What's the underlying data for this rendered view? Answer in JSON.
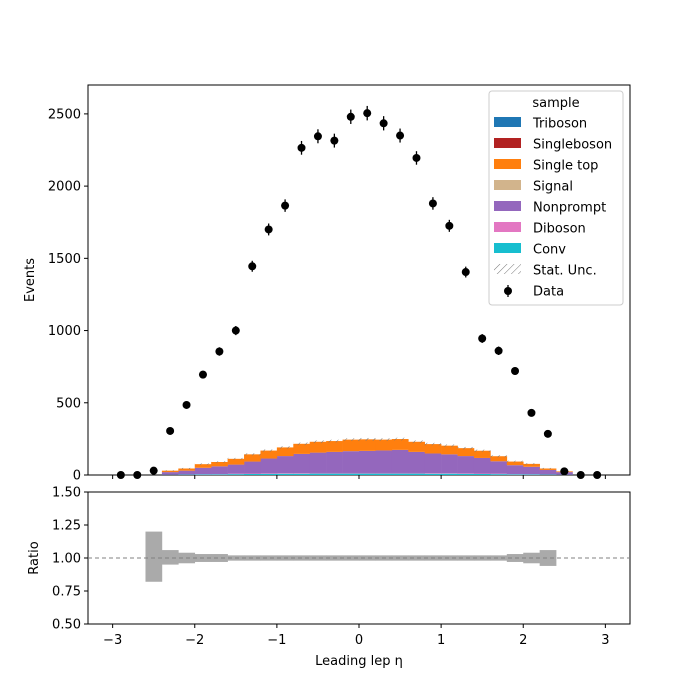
{
  "chart_data": [
    {
      "type": "bar",
      "stacked": true,
      "title": "",
      "xlabel": "",
      "ylabel": "Events",
      "xlim": [
        -3.3,
        3.3
      ],
      "ylim": [
        0,
        2700
      ],
      "yticks": [
        0,
        500,
        1000,
        1500,
        2000,
        2500
      ],
      "grid": false,
      "legend": {
        "title": "sample",
        "placement": "top-right",
        "entries": [
          "Triboson",
          "Singleboson",
          "Single top",
          "Signal",
          "Nonprompt",
          "Diboson",
          "Conv",
          "Stat. Unc.",
          "Data"
        ]
      },
      "bin_edges": [
        -3.0,
        -2.8,
        -2.6,
        -2.4,
        -2.2,
        -2.0,
        -1.8,
        -1.6,
        -1.4,
        -1.2,
        -1.0,
        -0.8,
        -0.6,
        -0.4,
        -0.2,
        0.0,
        0.2,
        0.4,
        0.6,
        0.8,
        1.0,
        1.2,
        1.4,
        1.6,
        1.8,
        2.0,
        2.2,
        2.4,
        2.6,
        2.8,
        3.0
      ],
      "series": [
        {
          "name": "Conv",
          "color": "#17becf",
          "values": [
            0,
            0,
            0,
            2,
            3,
            4,
            5,
            6,
            7,
            8,
            9,
            9,
            10,
            10,
            10,
            10,
            10,
            10,
            10,
            9,
            9,
            8,
            7,
            6,
            5,
            4,
            3,
            2,
            0,
            0
          ]
        },
        {
          "name": "Diboson",
          "color": "#e377c2",
          "values": [
            0,
            0,
            0,
            1,
            1,
            2,
            2,
            3,
            3,
            3,
            4,
            4,
            4,
            4,
            4,
            4,
            4,
            4,
            4,
            4,
            3,
            3,
            3,
            3,
            2,
            2,
            1,
            1,
            0,
            0
          ]
        },
        {
          "name": "Nonprompt",
          "color": "#9467bd",
          "values": [
            0,
            0,
            0,
            17,
            26,
            44,
            53,
            63,
            83,
            103,
            118,
            133,
            141,
            146,
            151,
            153,
            156,
            160,
            146,
            136,
            131,
            120,
            108,
            86,
            61,
            51,
            31,
            17,
            0,
            0
          ]
        },
        {
          "name": "Signal",
          "color": "#d2b48c",
          "values": [
            0,
            0,
            0,
            0,
            0,
            0,
            0,
            0,
            0,
            0,
            0,
            0,
            0,
            0,
            0,
            0,
            0,
            0,
            0,
            0,
            0,
            0,
            0,
            0,
            0,
            0,
            0,
            0,
            0,
            0
          ]
        },
        {
          "name": "Single top",
          "color": "#ff7f0e",
          "values": [
            0,
            0,
            0,
            10,
            15,
            25,
            30,
            40,
            50,
            55,
            60,
            70,
            75,
            75,
            80,
            80,
            75,
            75,
            70,
            65,
            60,
            55,
            50,
            35,
            25,
            20,
            10,
            5,
            0,
            0
          ]
        },
        {
          "name": "Singleboson",
          "color": "#b22222",
          "values": [
            0,
            0,
            0,
            0,
            0,
            0,
            0,
            0,
            0,
            0,
            0,
            0,
            0,
            0,
            0,
            0,
            0,
            0,
            0,
            0,
            0,
            0,
            0,
            0,
            0,
            0,
            0,
            0,
            0,
            0
          ]
        },
        {
          "name": "Triboson",
          "color": "#1f77b4",
          "values": [
            0,
            0,
            0,
            0,
            0,
            0,
            0,
            0,
            0,
            0,
            0,
            0,
            0,
            0,
            0,
            0,
            0,
            0,
            0,
            0,
            0,
            0,
            0,
            0,
            0,
            0,
            0,
            0,
            0,
            0
          ]
        }
      ],
      "data": {
        "name": "Data",
        "color": "#000000",
        "x": [
          -2.9,
          -2.7,
          -2.5,
          -2.3,
          -2.1,
          -1.9,
          -1.7,
          -1.5,
          -1.3,
          -1.1,
          -0.9,
          -0.7,
          -0.5,
          -0.3,
          -0.1,
          0.1,
          0.3,
          0.5,
          0.7,
          0.9,
          1.1,
          1.3,
          1.5,
          1.7,
          1.9,
          2.1,
          2.3,
          2.5,
          2.7,
          2.9
        ],
        "y": [
          0,
          0,
          30,
          305,
          485,
          695,
          855,
          1000,
          1445,
          1700,
          1865,
          2265,
          2345,
          2315,
          2480,
          2505,
          2435,
          2350,
          2195,
          1880,
          1725,
          1405,
          945,
          860,
          720,
          430,
          285,
          25,
          0,
          0
        ]
      }
    },
    {
      "type": "bar",
      "title": "",
      "xlabel": "Leading lep η",
      "ylabel": "Ratio",
      "xlim": [
        -3.3,
        3.3
      ],
      "ylim": [
        0.5,
        1.5
      ],
      "xticks": [
        -3,
        -2,
        -1,
        0,
        1,
        2,
        3
      ],
      "yticks": [
        0.5,
        0.75,
        1.0,
        1.25,
        1.5
      ],
      "ytick_labels": [
        "0.50",
        "0.75",
        "1.00",
        "1.25",
        "1.50"
      ],
      "reference_line": 1.0,
      "uncertainty_band": {
        "color": "#aaaaaa",
        "bin_edges": [
          -2.6,
          -2.4,
          -2.2,
          -2.0,
          -1.8,
          -1.6,
          -1.4,
          -1.2,
          -1.0,
          -0.8,
          -0.6,
          -0.4,
          -0.2,
          0.0,
          0.2,
          0.4,
          0.6,
          0.8,
          1.0,
          1.2,
          1.4,
          1.6,
          1.8,
          2.0,
          2.2,
          2.4
        ],
        "low": [
          0.82,
          0.95,
          0.96,
          0.97,
          0.97,
          0.98,
          0.98,
          0.98,
          0.98,
          0.98,
          0.98,
          0.98,
          0.98,
          0.98,
          0.98,
          0.98,
          0.98,
          0.98,
          0.98,
          0.98,
          0.98,
          0.98,
          0.97,
          0.96,
          0.94
        ],
        "high": [
          1.2,
          1.06,
          1.04,
          1.03,
          1.03,
          1.02,
          1.02,
          1.02,
          1.02,
          1.02,
          1.02,
          1.02,
          1.02,
          1.02,
          1.02,
          1.02,
          1.02,
          1.02,
          1.02,
          1.02,
          1.02,
          1.02,
          1.03,
          1.04,
          1.06
        ]
      }
    }
  ]
}
